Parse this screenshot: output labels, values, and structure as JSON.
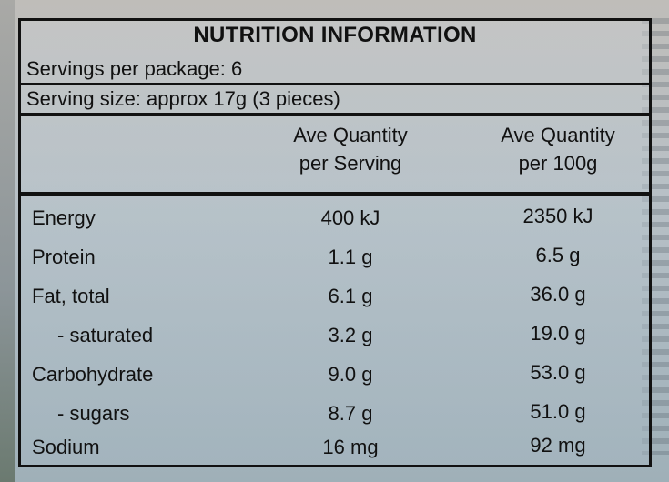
{
  "title": "NUTRITION INFORMATION",
  "servings_per_package": "Servings per package: 6",
  "serving_size": "Serving size: approx 17g (3 pieces)",
  "columns": {
    "per_serving": [
      "Ave Quantity",
      "per Serving"
    ],
    "per_100g": [
      "Ave Quantity",
      "per 100g"
    ]
  },
  "rows": [
    {
      "name": "Energy",
      "per_serving": "400 kJ",
      "per_100g": "2350 kJ"
    },
    {
      "name": "Protein",
      "per_serving": "1.1 g",
      "per_100g": "6.5 g"
    },
    {
      "name": "Fat, total",
      "per_serving": "6.1 g",
      "per_100g": "36.0 g"
    },
    {
      "name": "- saturated",
      "per_serving": "3.2 g",
      "per_100g": "19.0 g"
    },
    {
      "name": "Carbohydrate",
      "per_serving": "9.0 g",
      "per_100g": "53.0 g"
    },
    {
      "name": "- sugars",
      "per_serving": "8.7 g",
      "per_100g": "51.0 g"
    },
    {
      "name": "Sodium",
      "per_serving": "16 mg",
      "per_100g": "92 mg"
    }
  ]
}
